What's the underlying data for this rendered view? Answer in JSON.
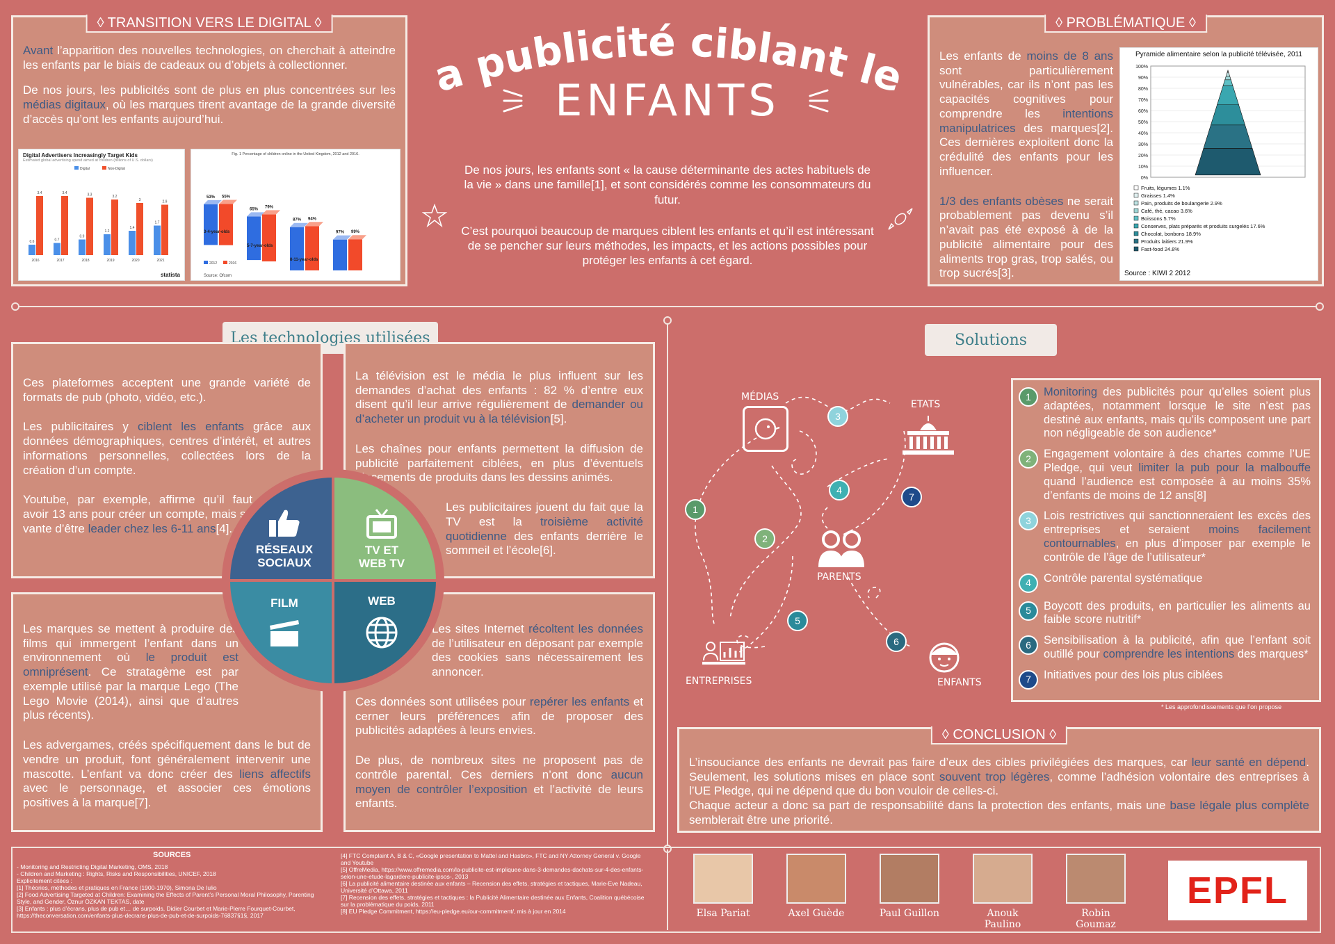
{
  "title": {
    "line1": "La publicité ciblant les",
    "line2": "ENFANTS"
  },
  "transition": {
    "heading": "◊ TRANSITION VERS LE DIGITAL ◊",
    "p1_hl": "Avant",
    "p1": " l’apparition des nouvelles technologies, on cherchait à atteindre les enfants par le biais de cadeaux ou d’objets à collectionner.",
    "p2a": "De nos jours, les publicités sont de plus en plus concentrées sur les ",
    "p2_hl": "médias digitaux",
    "p2b": ", où les marques tirent avantage de la grande diversité d’accès qu’ont les enfants aujourd’hui.",
    "chart1_title": "Digital Advertisers Increasingly Target Kids",
    "chart1_sub": "Estimated global advertising spend aimed at children (billions of U.S. dollars)",
    "chart1_legend": [
      "Digital",
      "Non-Digital"
    ],
    "chart1_footer": "statista",
    "chart2_title": "Fig. 1 Percentage of children online in the United Kingdom, 2012 and 2016.",
    "chart2_source": "Source: Ofcom"
  },
  "intro": {
    "p1": "De nos jours, les enfants sont « la cause déterminante des actes habituels de la vie » dans une famille[1], et sont considérés comme les consommateurs du futur.",
    "p2": "C’est pourquoi beaucoup de marques ciblent les enfants et qu’il est intéressant de se pencher sur leurs méthodes, les impacts, et les actions possibles pour protéger les enfants à cet égard."
  },
  "problematique": {
    "heading": "◊ PROBLÉMATIQUE ◊",
    "p1a": "Les enfants de ",
    "p1_hl": "moins de 8 ans",
    "p1b": " sont particulièrement vulnérables, car ils n’ont pas les capacités cognitives pour comprendre les ",
    "p1_hl2": "intentions manipulatrices",
    "p1c": " des marques[2]. Ces dernières exploitent donc la crédulité des enfants pour les influencer.",
    "p2_hl": "1/3 des enfants obèses",
    "p2": " ne serait probablement pas devenu s’il n’avait pas été exposé à de la publicité alimentaire pour des aliments trop gras, trop salés, ou trop sucrés[3].",
    "pyramid_title": "Pyramide alimentaire selon la publicité télévisée, 2011",
    "pyramid_source": "Source : KIWI 2 2012"
  },
  "chart_data": [
    {
      "type": "bar",
      "title": "Digital Advertisers Increasingly Target Kids",
      "categories": [
        "2016",
        "2017",
        "2018",
        "2019",
        "2020",
        "2021"
      ],
      "series": [
        {
          "name": "Digital",
          "values": [
            0.6,
            0.7,
            0.9,
            1.2,
            1.4,
            1.7
          ]
        },
        {
          "name": "Non-Digital",
          "values": [
            3.4,
            3.4,
            3.3,
            3.2,
            3.0,
            2.9
          ]
        }
      ],
      "ylim": [
        0,
        4
      ]
    },
    {
      "type": "bar",
      "title": "Fig. 1 Percentage of children online in the United Kingdom, 2012 and 2016.",
      "categories": [
        "3-4-year-olds",
        "5-7-year-olds",
        "8-11-year-olds",
        "12-15-year-olds"
      ],
      "series": [
        {
          "name": "2012",
          "values": [
            53,
            65,
            87,
            97
          ]
        },
        {
          "name": "2016",
          "values": [
            55,
            79,
            94,
            99
          ]
        }
      ],
      "ylim": [
        0,
        100
      ]
    },
    {
      "type": "area",
      "title": "Pyramide alimentaire selon la publicité télévisée, 2011",
      "yticks": [
        "0%",
        "10%",
        "20%",
        "30%",
        "40%",
        "50%",
        "60%",
        "70%",
        "80%",
        "90%",
        "100%"
      ],
      "categories": [
        "Fruits, légumes 1.1%",
        "Graisses 1.4%",
        "Pain, produits de boulangerie 2.9%",
        "Café, thé, cacao 3.6%",
        "Boissons 5.7%",
        "Conserves, plats préparés et produits surgelés 17.6%",
        "Chocolat, bonbons 18.9%",
        "Produits laitiers 21.9%",
        "Fast-food 24.8%"
      ],
      "values": [
        1.1,
        1.4,
        2.9,
        3.6,
        5.7,
        17.6,
        18.9,
        21.9,
        24.8
      ],
      "colors": [
        "#ffffff",
        "#e0f0f0",
        "#bfe3e3",
        "#9fd6d6",
        "#5fc0c5",
        "#3aa7b0",
        "#2d8e9b",
        "#2a7285",
        "#1e5a6e"
      ]
    }
  ],
  "technologies": {
    "banner": "Les technologies utilisées",
    "reseaux": {
      "p1": "Ces plateformes acceptent une grande variété de formats de pub (photo, vidéo, etc.).",
      "p2a": "Les publicitaires y ",
      "p2_hl": "ciblent les enfants",
      "p2b": " grâce aux données démographiques, centres d’intérêt, et autres informations personnelles, collectées lors de la création d’un compte.",
      "p3a": "Youtube, par exemple, affirme qu’il faut avoir 13 ans pour créer un compte, mais se vante d’être ",
      "p3_hl": "leader chez les 6-11 ans",
      "p3b": "[4]."
    },
    "tv": {
      "p1a": "La télévision est le média le plus influent sur les demandes d’achat des enfants : 82 % d’entre eux disent qu’il leur arrive régulièrement de ",
      "p1_hl": "demander ou d’acheter un produit vu à la télévision",
      "p1b": "[5].",
      "p2": "Les chaînes pour enfants permettent la diffusion de publicité parfaitement ciblées, en plus d’éventuels placements de produits dans les dessins animés.",
      "p3a": "Les publicitaires jouent du fait que la TV est la ",
      "p3_hl": "troisième activité quotidienne",
      "p3b": " des enfants derrière le sommeil et l’école[6]."
    },
    "film": {
      "p1a": "Les marques se mettent à produire des films qui immergent l’enfant dans un environnement où ",
      "p1_hl": "le produit est omniprésent",
      "p1b": ". Ce stratagème est par exemple utilisé par la marque Lego (The Lego Movie (2014), ainsi que d’autres plus récents).",
      "p2a": "Les advergames, créés spécifiquement dans le but de vendre un produit, font généralement intervenir une mascotte. L’enfant va donc créer des ",
      "p2_hl": "liens affectifs",
      "p2b": " avec le personnage, et associer ces émotions positives à la marque[7]."
    },
    "web": {
      "p1a": "Les sites Internet ",
      "p1_hl": "récoltent les données",
      "p1b": " de l’utilisateur en déposant par exemple des cookies sans nécessairement les annoncer.",
      "p2a": "Ces données sont utilisées pour ",
      "p2_hl": "repérer les enfants",
      "p2b": " et cerner leurs préférences afin de proposer des publicités adaptées à leurs envies.",
      "p3a": "De plus, de nombreux sites ne proposent pas de contrôle parental. Ces derniers n’ont donc ",
      "p3_hl": "aucun moyen de contrôler l’exposition",
      "p3b": " et l’activité de leurs enfants."
    },
    "quadrants": {
      "reseaux": "RÉSEAUX SOCIAUX",
      "tv": "TV ET WEB TV",
      "film": "FILM",
      "web": "WEB"
    }
  },
  "solutions": {
    "banner": "Solutions",
    "diagram": {
      "medias": "MÉDIAS",
      "etats": "ETATS",
      "parents": "PARENTS",
      "entreprises": "ENTREPRISES",
      "enfants": "ENFANTS"
    },
    "items": [
      {
        "num": "1",
        "color": "#5a9a6a",
        "a": "",
        "hl": "Monitoring",
        "b": " des publicités pour qu’elles soient plus adaptées, notamment lorsque le site n’est pas destiné aux enfants, mais qu’ils composent une part non négligeable de son audience*"
      },
      {
        "num": "2",
        "color": "#7fb27a",
        "a": "Engagement volontaire à des chartes comme l’UE Pledge, qui veut ",
        "hl": "limiter la pub pour la malbouffe",
        "b": " quand l’audience est composée à au moins 35% d’enfants de moins de 12 ans[8]"
      },
      {
        "num": "3",
        "color": "#8fd3dc",
        "a": "Lois restrictives qui sanctionneraient les excès des entreprises et seraient ",
        "hl": "moins facilement contournables",
        "b": ", en plus d’imposer par exemple le contrôle de l’âge de l’utilisateur*"
      },
      {
        "num": "4",
        "color": "#3fb0b2",
        "a": "Contrôle parental systématique",
        "hl": "",
        "b": ""
      },
      {
        "num": "5",
        "color": "#2a8a9a",
        "a": "Boycott des produits, en particulier les aliments au faible score nutritif*",
        "hl": "",
        "b": ""
      },
      {
        "num": "6",
        "color": "#2a6a80",
        "a": "Sensibilisation à la publicité, afin que l’enfant soit outillé pour ",
        "hl": "comprendre les intentions",
        "b": " des marques*"
      },
      {
        "num": "7",
        "color": "#1e4a8a",
        "a": "Initiatives pour des lois plus ciblées",
        "hl": "",
        "b": ""
      }
    ],
    "footnote": "* Les approfondissements que l’on propose"
  },
  "conclusion": {
    "heading": "◊ CONCLUSION ◊",
    "p1a": "L’insouciance des enfants ne devrait pas faire d’eux des cibles privilégiées des marques, car ",
    "p1_hl": "leur santé en dépend",
    "p1b": ". Seulement, les solutions mises en place sont ",
    "p1_hl2": "souvent trop légères",
    "p1c": ", comme l’adhésion volontaire des entreprises à l’UE Pledge, qui ne dépend que du bon vouloir de celles-ci.",
    "p2a": "Chaque acteur a donc sa part de responsabilité dans la protection des enfants, mais une ",
    "p2_hl": "base légale plus complète",
    "p2b": " semblerait être une priorité."
  },
  "sources": {
    "heading": "SOURCES",
    "col1": [
      "- Monitoring and Restricting Digital Marketing, OMS, 2018",
      "- Children and Marketing : Rights, Risks and Responsibilities, UNICEF, 2018",
      "Explicitement citées :",
      "[1] Théories, méthodes et pratiques en France (1900-1970), Simona De Iulio",
      "[2] Food Advertising Targeted at Children: Examining the Effects of Parent’s Personal Moral Philosophy, Parenting Style, and Gender, Öznur ÖZKAN TEKTAS, date",
      "[3] Enfants : plus d’écrans, plus de pub et… de surpoids, Didier Courbet et Marie-Pierre Fourquet-Courbet, https://theconversation.com/enfants-plus-decrans-plus-de-pub-et-de-surpoids-76837§1§, 2017"
    ],
    "col2": [
      "[4] FTC Complaint A, B & C, «Google presentation to Mattel and Hasbro», FTC and NY Attorney General v. Google and Youtube",
      "[5] OffreMedia, https://www.offremedia.com/la-publicite-est-impliquee-dans-3-demandes-dachats-sur-4-des-enfants-selon-une-etude-lagardere-publicite-ipsos-, 2013",
      "[6] La publicité alimentaire destinée aux enfants – Recension des effets, stratégies et tactiques, Marie-Eve Nadeau, Université d’Ottawa, 2011",
      "[7] Recension des effets, stratégies et tactiques : la Publicité Alimentaire destinée aux Enfants, Coalition québécoise sur la problématique du poids, 2011",
      "[8] EU Pledge Commitment, https://eu-pledge.eu/our-commitment/, mis à jour en 2014"
    ]
  },
  "team": [
    "Elsa Pariat",
    "Axel Guède",
    "Paul Guillon",
    "Anouk Paulino",
    "Robin Goumaz"
  ],
  "logo": "EPFL"
}
